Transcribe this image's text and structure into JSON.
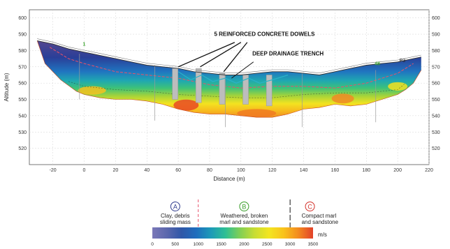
{
  "chart_data": {
    "type": "heatmap",
    "xlabel": "Distance (m)",
    "ylabel": "Altitude (m)",
    "xlim": [
      -35,
      220
    ],
    "ylim": [
      510,
      605
    ],
    "x_ticks": [
      -20,
      0,
      20,
      40,
      60,
      80,
      100,
      120,
      140,
      160,
      180,
      200,
      220
    ],
    "y_ticks": [
      520,
      530,
      540,
      550,
      560,
      570,
      580,
      590,
      600
    ],
    "grid": true,
    "topography": {
      "x": [
        -30,
        -20,
        -10,
        0,
        10,
        20,
        30,
        40,
        50,
        60,
        70,
        80,
        90,
        100,
        110,
        120,
        130,
        140,
        150,
        160,
        170,
        180,
        190,
        200,
        210,
        215
      ],
      "y": [
        586,
        584,
        581,
        579,
        577,
        575,
        573,
        571,
        570,
        569,
        567,
        566,
        565,
        565,
        566,
        567,
        567,
        566,
        565,
        567,
        569,
        571,
        572,
        573,
        575,
        576
      ]
    },
    "tomography_bottom": {
      "x": [
        -30,
        -25,
        -15,
        -5,
        0,
        10,
        20,
        30,
        40,
        50,
        60,
        70,
        80,
        90,
        100,
        110,
        120,
        130,
        140,
        150,
        160,
        170,
        180,
        190,
        200,
        205,
        210,
        215
      ],
      "y": [
        586,
        572,
        562,
        555,
        553,
        551,
        550,
        550,
        549,
        547,
        544,
        542,
        541,
        541,
        540,
        539,
        539,
        541,
        544,
        545,
        547,
        546,
        547,
        550,
        553,
        556,
        560,
        568
      ]
    },
    "velocity_isolines": [
      {
        "name": "1000 m/s",
        "x": [
          -22,
          -10,
          0,
          20,
          40,
          60,
          80,
          100,
          120,
          140,
          160,
          180,
          200,
          210
        ],
        "y": [
          582,
          575,
          572,
          567,
          565,
          563,
          559,
          557,
          558,
          558,
          557,
          560,
          566,
          572
        ]
      },
      {
        "name": "3000 m/s",
        "x": [
          -10,
          0,
          20,
          40,
          60,
          80,
          100,
          120,
          140,
          160,
          180,
          200,
          205
        ],
        "y": [
          561,
          558,
          556,
          555,
          553,
          552,
          551,
          551,
          553,
          554,
          554,
          556,
          560
        ]
      }
    ],
    "dowels": {
      "x": [
        58,
        73,
        88,
        103,
        118
      ],
      "top": [
        569,
        569,
        566,
        565,
        565
      ],
      "bottom": [
        550,
        548,
        547,
        547,
        546
      ]
    },
    "boreholes": [
      {
        "x": -3,
        "top": 578,
        "bottom": 550
      },
      {
        "x": 45,
        "top": 571,
        "bottom": 537
      },
      {
        "x": 90,
        "top": 565,
        "bottom": 533
      },
      {
        "x": 139,
        "top": 566,
        "bottom": 533
      },
      {
        "x": 186,
        "top": 568,
        "bottom": 536
      }
    ],
    "profile_labels": [
      {
        "text": "1",
        "x": 0,
        "y": 583
      },
      {
        "text": "48",
        "x": 187,
        "y": 571
      },
      {
        "text": "P3",
        "x": 203,
        "y": 573
      }
    ],
    "annotations": [
      {
        "text": "5 REINFORCED CONCRETE DOWELS",
        "x": 115,
        "y": 589
      },
      {
        "text": "DEEP DRAINAGE TRENCH",
        "x": 130,
        "y": 577
      }
    ],
    "colorbar": {
      "unit": "m/s",
      "ticks": [
        0,
        500,
        1000,
        1500,
        2000,
        2500,
        3000,
        3500
      ],
      "range": [
        0,
        3500
      ],
      "colors": [
        "#7b78b8",
        "#5b67ad",
        "#2f57a8",
        "#1e6dbd",
        "#1c9ab8",
        "#2ebf94",
        "#80cf55",
        "#c8dd34",
        "#f3e520",
        "#f9c21c",
        "#f38a1f",
        "#e2412a"
      ]
    },
    "legend": [
      {
        "marker": "A",
        "lines": [
          "Clay, debris",
          "sliding mass"
        ],
        "color": "#2e3a8c"
      },
      {
        "marker": "B",
        "lines": [
          "Weathered, broken",
          "marl and sandstone"
        ],
        "color": "#3a9e2a"
      },
      {
        "marker": "C",
        "lines": [
          "Compact marl",
          "and sandstone"
        ],
        "color": "#d3322b"
      }
    ],
    "legend_boundaries": [
      1000,
      3000
    ]
  }
}
